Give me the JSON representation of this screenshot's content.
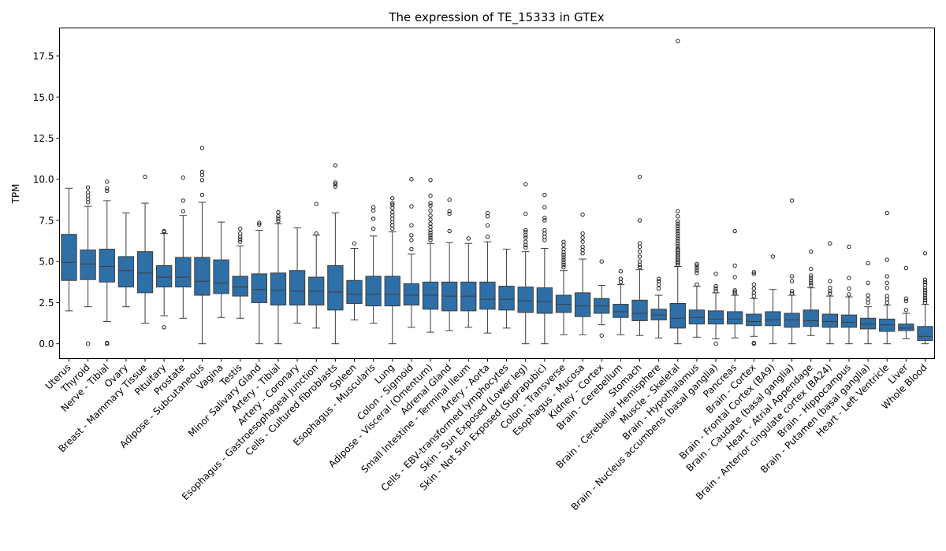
{
  "chart_data": {
    "type": "box",
    "title": "The expression of TE_15333 in GTEx",
    "xlabel": "",
    "ylabel": "TPM",
    "ylim": [
      -0.9,
      19.2
    ],
    "yticks": [
      0.0,
      2.5,
      5.0,
      7.5,
      10.0,
      12.5,
      15.0,
      17.5
    ],
    "ytick_labels": [
      "0.0",
      "2.5",
      "5.0",
      "7.5",
      "10.0",
      "12.5",
      "15.0",
      "17.5"
    ],
    "grid": false,
    "box_color": "#2f6fa8",
    "categories": [
      {
        "name": "Uterus",
        "whislo": 2.0,
        "q1": 3.85,
        "med": 4.95,
        "q3": 6.65,
        "whishi": 9.45,
        "fliers": []
      },
      {
        "name": "Thyroid",
        "whislo": 2.25,
        "q1": 3.9,
        "med": 4.85,
        "q3": 5.7,
        "whishi": 8.35,
        "fliers": [
          8.6,
          8.8,
          9.0,
          9.2,
          9.5,
          0.0
        ]
      },
      {
        "name": "Nerve - Tibial",
        "whislo": 1.35,
        "q1": 3.75,
        "med": 4.7,
        "q3": 5.75,
        "whishi": 8.7,
        "fliers": [
          9.3,
          9.45,
          9.85,
          0.0,
          0.05
        ]
      },
      {
        "name": "Ovary",
        "whislo": 2.25,
        "q1": 3.45,
        "med": 4.45,
        "q3": 5.3,
        "whishi": 7.95,
        "fliers": []
      },
      {
        "name": "Breast - Mammary Tissue",
        "whislo": 1.25,
        "q1": 3.1,
        "med": 4.3,
        "q3": 5.6,
        "whishi": 8.55,
        "fliers": [
          10.15
        ]
      },
      {
        "name": "Pituitary",
        "whislo": 1.7,
        "q1": 3.45,
        "med": 4.05,
        "q3": 4.75,
        "whishi": 6.7,
        "fliers": [
          6.8,
          6.85,
          1.0
        ]
      },
      {
        "name": "Prostate",
        "whislo": 1.55,
        "q1": 3.45,
        "med": 4.05,
        "q3": 5.25,
        "whishi": 7.8,
        "fliers": [
          8.05,
          8.7,
          10.1
        ]
      },
      {
        "name": "Adipose - Subcutaneous",
        "whislo": 0.0,
        "q1": 2.95,
        "med": 3.8,
        "q3": 5.25,
        "whishi": 8.6,
        "fliers": [
          9.05,
          9.95,
          10.25,
          10.45,
          11.9
        ]
      },
      {
        "name": "Vagina",
        "whislo": 1.6,
        "q1": 3.05,
        "med": 3.7,
        "q3": 5.1,
        "whishi": 7.4,
        "fliers": []
      },
      {
        "name": "Testis",
        "whislo": 1.55,
        "q1": 2.9,
        "med": 3.45,
        "q3": 4.1,
        "whishi": 5.95,
        "fliers": [
          6.2,
          6.35,
          6.5,
          6.7,
          7.0
        ]
      },
      {
        "name": "Minor Salivary Gland",
        "whislo": 0.0,
        "q1": 2.5,
        "med": 3.3,
        "q3": 4.25,
        "whishi": 6.9,
        "fliers": [
          7.25,
          7.35
        ]
      },
      {
        "name": "Artery - Tibial",
        "whislo": 0.0,
        "q1": 2.35,
        "med": 3.25,
        "q3": 4.3,
        "whishi": 7.3,
        "fliers": [
          7.45,
          7.6,
          7.75,
          8.0
        ]
      },
      {
        "name": "Artery - Coronary",
        "whislo": 1.25,
        "q1": 2.35,
        "med": 3.2,
        "q3": 4.45,
        "whishi": 7.05,
        "fliers": []
      },
      {
        "name": "Esophagus - Gastroesophageal Junction",
        "whislo": 0.95,
        "q1": 2.35,
        "med": 3.2,
        "q3": 4.05,
        "whishi": 6.6,
        "fliers": [
          6.7,
          8.5
        ]
      },
      {
        "name": "Cells - Cultured fibroblasts",
        "whislo": 0.0,
        "q1": 2.05,
        "med": 3.15,
        "q3": 4.75,
        "whishi": 7.95,
        "fliers": [
          9.55,
          9.7,
          9.8,
          10.85
        ]
      },
      {
        "name": "Spleen",
        "whislo": 1.45,
        "q1": 2.45,
        "med": 3.0,
        "q3": 3.85,
        "whishi": 5.8,
        "fliers": [
          6.1
        ]
      },
      {
        "name": "Esophagus - Muscularis",
        "whislo": 1.25,
        "q1": 2.3,
        "med": 3.0,
        "q3": 4.1,
        "whishi": 6.55,
        "fliers": [
          7.0,
          7.6,
          8.1,
          8.3
        ]
      },
      {
        "name": "Lung",
        "whislo": 0.0,
        "q1": 2.3,
        "med": 3.0,
        "q3": 4.1,
        "whishi": 6.8,
        "fliers": [
          7.0,
          7.2,
          7.4,
          7.6,
          7.8,
          8.0,
          8.25,
          8.45,
          8.55,
          8.85
        ]
      },
      {
        "name": "Colon - Sigmoid",
        "whislo": 1.0,
        "q1": 2.35,
        "med": 2.95,
        "q3": 3.65,
        "whishi": 5.45,
        "fliers": [
          5.75,
          6.3,
          6.6,
          7.2,
          8.35,
          10.0
        ]
      },
      {
        "name": "Adipose - Visceral (Omentum)",
        "whislo": 0.7,
        "q1": 2.1,
        "med": 2.95,
        "q3": 3.75,
        "whishi": 6.1,
        "fliers": [
          6.3,
          6.45,
          6.6,
          6.75,
          6.9,
          7.1,
          7.3,
          7.55,
          7.8,
          8.1,
          8.4,
          8.55,
          9.0,
          9.95
        ]
      },
      {
        "name": "Adrenal Gland",
        "whislo": 0.8,
        "q1": 2.0,
        "med": 2.9,
        "q3": 3.75,
        "whishi": 6.15,
        "fliers": [
          6.85,
          7.9,
          8.05,
          8.75
        ]
      },
      {
        "name": "Small Intestine - Terminal Ileum",
        "whislo": 1.0,
        "q1": 2.0,
        "med": 2.9,
        "q3": 3.75,
        "whishi": 6.1,
        "fliers": [
          6.4
        ]
      },
      {
        "name": "Artery - Aorta",
        "whislo": 0.65,
        "q1": 2.1,
        "med": 2.7,
        "q3": 3.75,
        "whishi": 6.2,
        "fliers": [
          6.5,
          7.2,
          7.75,
          7.95
        ]
      },
      {
        "name": "Cells - EBV-transformed lymphocytes",
        "whislo": 0.95,
        "q1": 2.05,
        "med": 2.7,
        "q3": 3.5,
        "whishi": 5.75,
        "fliers": []
      },
      {
        "name": "Skin - Sun Exposed (Lower leg)",
        "whislo": 0.0,
        "q1": 1.9,
        "med": 2.6,
        "q3": 3.45,
        "whishi": 5.6,
        "fliers": [
          5.85,
          6.0,
          6.2,
          6.45,
          6.6,
          6.8,
          6.9,
          7.9,
          9.7
        ]
      },
      {
        "name": "Skin - Not Sun Exposed (Suprapubic)",
        "whislo": 0.0,
        "q1": 1.85,
        "med": 2.55,
        "q3": 3.4,
        "whishi": 5.8,
        "fliers": [
          6.3,
          6.5,
          6.7,
          6.9,
          7.5,
          7.65,
          8.3,
          9.05
        ]
      },
      {
        "name": "Colon - Transverse",
        "whislo": 0.55,
        "q1": 1.9,
        "med": 2.4,
        "q3": 2.95,
        "whishi": 4.45,
        "fliers": [
          4.65,
          4.8,
          4.95,
          5.1,
          5.25,
          5.4,
          5.55,
          5.75,
          6.0,
          6.2
        ]
      },
      {
        "name": "Esophagus - Mucosa",
        "whislo": 0.55,
        "q1": 1.65,
        "med": 2.3,
        "q3": 3.1,
        "whishi": 5.15,
        "fliers": [
          5.5,
          5.7,
          5.9,
          6.2,
          6.45,
          6.7,
          7.85
        ]
      },
      {
        "name": "Kidney - Cortex",
        "whislo": 1.15,
        "q1": 1.85,
        "med": 2.3,
        "q3": 2.75,
        "whishi": 3.55,
        "fliers": [
          5.0,
          0.5
        ]
      },
      {
        "name": "Brain - Cerebellum",
        "whislo": 0.55,
        "q1": 1.6,
        "med": 1.95,
        "q3": 2.4,
        "whishi": 3.6,
        "fliers": [
          3.75,
          3.95,
          4.4
        ]
      },
      {
        "name": "Stomach",
        "whislo": 0.5,
        "q1": 1.4,
        "med": 1.85,
        "q3": 2.65,
        "whishi": 4.5,
        "fliers": [
          4.65,
          4.8,
          5.0,
          5.3,
          5.6,
          5.9,
          6.1,
          7.5,
          10.15
        ]
      },
      {
        "name": "Brain - Cerebellar Hemisphere",
        "whislo": 0.35,
        "q1": 1.45,
        "med": 1.75,
        "q3": 2.1,
        "whishi": 2.95,
        "fliers": [
          3.35,
          3.6,
          3.8,
          3.95
        ]
      },
      {
        "name": "Muscle - Skeletal",
        "whislo": 0.0,
        "q1": 0.95,
        "med": 1.55,
        "q3": 2.45,
        "whishi": 4.7,
        "fliers": [
          4.8,
          4.9,
          5.0,
          5.1,
          5.2,
          5.3,
          5.4,
          5.5,
          5.6,
          5.7,
          5.8,
          5.95,
          6.1,
          6.25,
          6.4,
          6.55,
          6.7,
          6.85,
          7.0,
          7.15,
          7.3,
          7.45,
          7.75,
          8.05,
          18.4
        ]
      },
      {
        "name": "Brain - Hypothalamus",
        "whislo": 0.4,
        "q1": 1.2,
        "med": 1.6,
        "q3": 2.05,
        "whishi": 3.5,
        "fliers": [
          3.6,
          4.3,
          4.45,
          4.6,
          4.75,
          4.85
        ]
      },
      {
        "name": "Brain - Nucleus accumbens (basal ganglia)",
        "whislo": 0.3,
        "q1": 1.2,
        "med": 1.5,
        "q3": 2.0,
        "whishi": 3.1,
        "fliers": [
          3.2,
          3.35,
          3.5,
          4.25,
          0.0
        ]
      },
      {
        "name": "Pancreas",
        "whislo": 0.35,
        "q1": 1.2,
        "med": 1.5,
        "q3": 1.95,
        "whishi": 2.95,
        "fliers": [
          3.05,
          3.15,
          3.25,
          4.05,
          4.75,
          6.85
        ]
      },
      {
        "name": "Brain - Cortex",
        "whislo": 0.45,
        "q1": 1.1,
        "med": 1.35,
        "q3": 1.8,
        "whishi": 2.75,
        "fliers": [
          2.9,
          3.1,
          3.35,
          3.6,
          4.25,
          4.35,
          0.0,
          0.05
        ]
      },
      {
        "name": "Brain - Frontal Cortex (BA9)",
        "whislo": 0.0,
        "q1": 1.1,
        "med": 1.45,
        "q3": 1.95,
        "whishi": 3.3,
        "fliers": [
          5.3
        ]
      },
      {
        "name": "Brain - Caudate (basal ganglia)",
        "whislo": 0.0,
        "q1": 1.0,
        "med": 1.45,
        "q3": 1.85,
        "whishi": 2.95,
        "fliers": [
          3.05,
          3.2,
          3.8,
          4.1,
          8.7
        ]
      },
      {
        "name": "Heart - Atrial Appendage",
        "whislo": 0.5,
        "q1": 1.05,
        "med": 1.4,
        "q3": 2.05,
        "whishi": 3.4,
        "fliers": [
          3.55,
          3.7,
          3.85,
          4.0,
          4.15,
          4.55,
          5.6
        ]
      },
      {
        "name": "Brain - Anterior cingulate cortex (BA24)",
        "whislo": 0.0,
        "q1": 1.0,
        "med": 1.35,
        "q3": 1.8,
        "whishi": 2.9,
        "fliers": [
          3.05,
          3.2,
          3.4,
          3.8,
          6.1
        ]
      },
      {
        "name": "Brain - Hippocampus",
        "whislo": 0.0,
        "q1": 1.0,
        "med": 1.3,
        "q3": 1.75,
        "whishi": 2.85,
        "fliers": [
          3.0,
          3.35,
          4.0,
          5.9
        ]
      },
      {
        "name": "Brain - Putamen (basal ganglia)",
        "whislo": 0.0,
        "q1": 0.9,
        "med": 1.2,
        "q3": 1.55,
        "whishi": 2.25,
        "fliers": [
          2.5,
          2.7,
          2.95,
          3.7,
          4.9
        ]
      },
      {
        "name": "Heart - Left Ventricle",
        "whislo": 0.0,
        "q1": 0.75,
        "med": 1.15,
        "q3": 1.5,
        "whishi": 2.35,
        "fliers": [
          2.5,
          2.7,
          2.9,
          3.4,
          3.7,
          4.1,
          5.1,
          7.95
        ]
      },
      {
        "name": "Liver",
        "whislo": 0.3,
        "q1": 0.8,
        "med": 0.95,
        "q3": 1.2,
        "whishi": 1.85,
        "fliers": [
          2.05,
          2.6,
          2.75,
          4.6
        ]
      },
      {
        "name": "Whole Blood",
        "whislo": 0.0,
        "q1": 0.2,
        "med": 0.45,
        "q3": 1.05,
        "whishi": 2.4,
        "fliers": [
          2.5,
          2.65,
          2.8,
          2.95,
          3.1,
          3.25,
          3.4,
          3.6,
          3.75,
          3.9,
          5.5
        ]
      }
    ]
  }
}
